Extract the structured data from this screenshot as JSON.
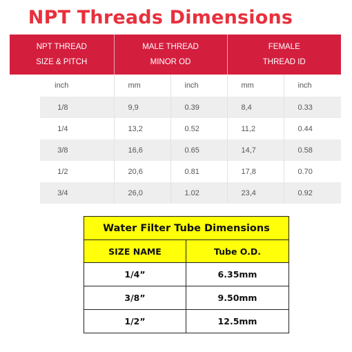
{
  "title": "NPT Threads Dimensions",
  "npt_table": {
    "headers": [
      {
        "line1": "NPT THREAD",
        "line2": "SIZE & PITCH"
      },
      {
        "line1": "MALE THREAD",
        "line2": "MINOR OD"
      },
      {
        "line1": "FEMALE",
        "line2": "THREAD ID"
      }
    ],
    "units": [
      "inch",
      "mm",
      "inch",
      "mm",
      "inch"
    ],
    "rows": [
      {
        "size": "1/8",
        "male_mm": "9,9",
        "male_inch": "0.39",
        "female_mm": "8,4",
        "female_inch": "0.33"
      },
      {
        "size": "1/4",
        "male_mm": "13,2",
        "male_inch": "0.52",
        "female_mm": "11,2",
        "female_inch": "0.44"
      },
      {
        "size": "3/8",
        "male_mm": "16,6",
        "male_inch": "0.65",
        "female_mm": "14,7",
        "female_inch": "0.58"
      },
      {
        "size": "1/2",
        "male_mm": "20,6",
        "male_inch": "0.81",
        "female_mm": "17,8",
        "female_inch": "0.70"
      },
      {
        "size": "3/4",
        "male_mm": "26,0",
        "male_inch": "1.02",
        "female_mm": "23,4",
        "female_inch": "0.92"
      }
    ],
    "colors": {
      "header_bg": "#d41e3e",
      "stripe": "#eeeeee"
    }
  },
  "water_filter_table": {
    "title": "Water Filter Tube Dimensions",
    "headers": [
      "SIZE NAME",
      "Tube O.D."
    ],
    "rows": [
      {
        "size": "1/4”",
        "od": "6.35mm"
      },
      {
        "size": "3/8”",
        "od": "9.50mm"
      },
      {
        "size": "1/2”",
        "od": "12.5mm"
      }
    ],
    "colors": {
      "header_bg": "#ffff0a"
    }
  }
}
